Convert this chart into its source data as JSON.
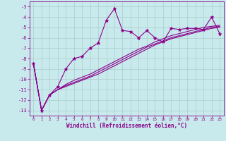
{
  "xlabel": "Windchill (Refroidissement éolien,°C)",
  "bg_color": "#c8eaec",
  "grid_color": "#aacccc",
  "line_color": "#8b008b",
  "x_data": [
    0,
    1,
    2,
    3,
    4,
    5,
    6,
    7,
    8,
    9,
    10,
    11,
    12,
    13,
    14,
    15,
    16,
    17,
    18,
    19,
    20,
    21,
    22,
    23
  ],
  "series1": [
    -8.5,
    -13.0,
    -11.5,
    -10.7,
    -9.0,
    -8.0,
    -7.8,
    -7.0,
    -6.5,
    -4.3,
    -3.2,
    -5.3,
    -5.4,
    -6.0,
    -5.3,
    -6.0,
    -6.4,
    -5.1,
    -5.2,
    -5.1,
    -5.1,
    -5.2,
    -4.0,
    -5.6
  ],
  "series2": [
    -8.5,
    -13.0,
    -11.5,
    -11.0,
    -10.5,
    -10.1,
    -9.8,
    -9.5,
    -9.1,
    -8.7,
    -8.3,
    -7.9,
    -7.5,
    -7.1,
    -6.8,
    -6.4,
    -6.1,
    -5.8,
    -5.6,
    -5.4,
    -5.2,
    -5.0,
    -4.9,
    -4.8
  ],
  "series3": [
    -8.5,
    -13.0,
    -11.5,
    -11.0,
    -10.6,
    -10.3,
    -10.0,
    -9.7,
    -9.3,
    -8.9,
    -8.5,
    -8.1,
    -7.7,
    -7.3,
    -6.9,
    -6.6,
    -6.3,
    -6.0,
    -5.8,
    -5.6,
    -5.4,
    -5.2,
    -5.0,
    -4.9
  ],
  "series4": [
    -8.5,
    -13.0,
    -11.5,
    -11.0,
    -10.7,
    -10.4,
    -10.1,
    -9.8,
    -9.5,
    -9.1,
    -8.7,
    -8.3,
    -7.9,
    -7.5,
    -7.1,
    -6.7,
    -6.4,
    -6.1,
    -5.9,
    -5.7,
    -5.5,
    -5.3,
    -5.1,
    -5.0
  ],
  "ylim": [
    -13.5,
    -2.5
  ],
  "xlim": [
    -0.5,
    23.5
  ],
  "yticks": [
    -13,
    -12,
    -11,
    -10,
    -9,
    -8,
    -7,
    -6,
    -5,
    -4,
    -3
  ],
  "xticks": [
    0,
    1,
    2,
    3,
    4,
    5,
    6,
    7,
    8,
    9,
    10,
    11,
    12,
    13,
    14,
    15,
    16,
    17,
    18,
    19,
    20,
    21,
    22,
    23
  ]
}
